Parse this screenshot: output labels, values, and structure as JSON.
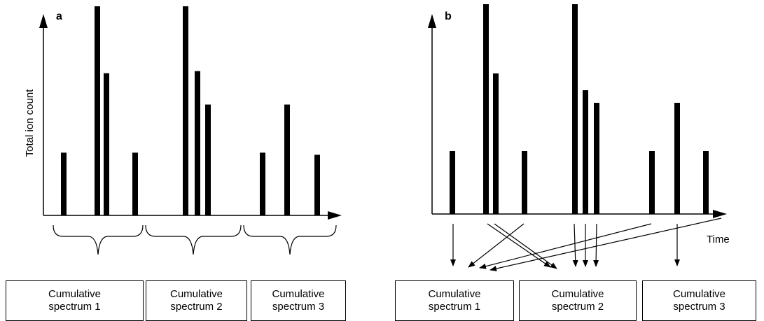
{
  "panel_a": {
    "label": "a",
    "ylabel": "Total ion count",
    "peaks": [
      30,
      100,
      68,
      30,
      100,
      69,
      53,
      30,
      53,
      29
    ],
    "groups": [
      {
        "line1": "Cumulative",
        "line2": "spectrum 1"
      },
      {
        "line1": "Cumulative",
        "line2": "spectrum 2"
      },
      {
        "line1": "Cumulative",
        "line2": "spectrum 3"
      }
    ]
  },
  "panel_b": {
    "label": "b",
    "xlabel": "Time",
    "peaks": [
      30,
      100,
      67,
      30,
      100,
      59,
      53,
      30,
      53,
      30
    ],
    "peak_to_spectrum": [
      1,
      2,
      2,
      1,
      2,
      2,
      2,
      1,
      3,
      1
    ],
    "groups": [
      {
        "line1": "Cumulative",
        "line2": "spectrum 1"
      },
      {
        "line1": "Cumulative",
        "line2": "spectrum 2"
      },
      {
        "line1": "Cumulative",
        "line2": "spectrum 3"
      }
    ]
  },
  "colors": {
    "ink": "#000000",
    "background": "#ffffff"
  }
}
